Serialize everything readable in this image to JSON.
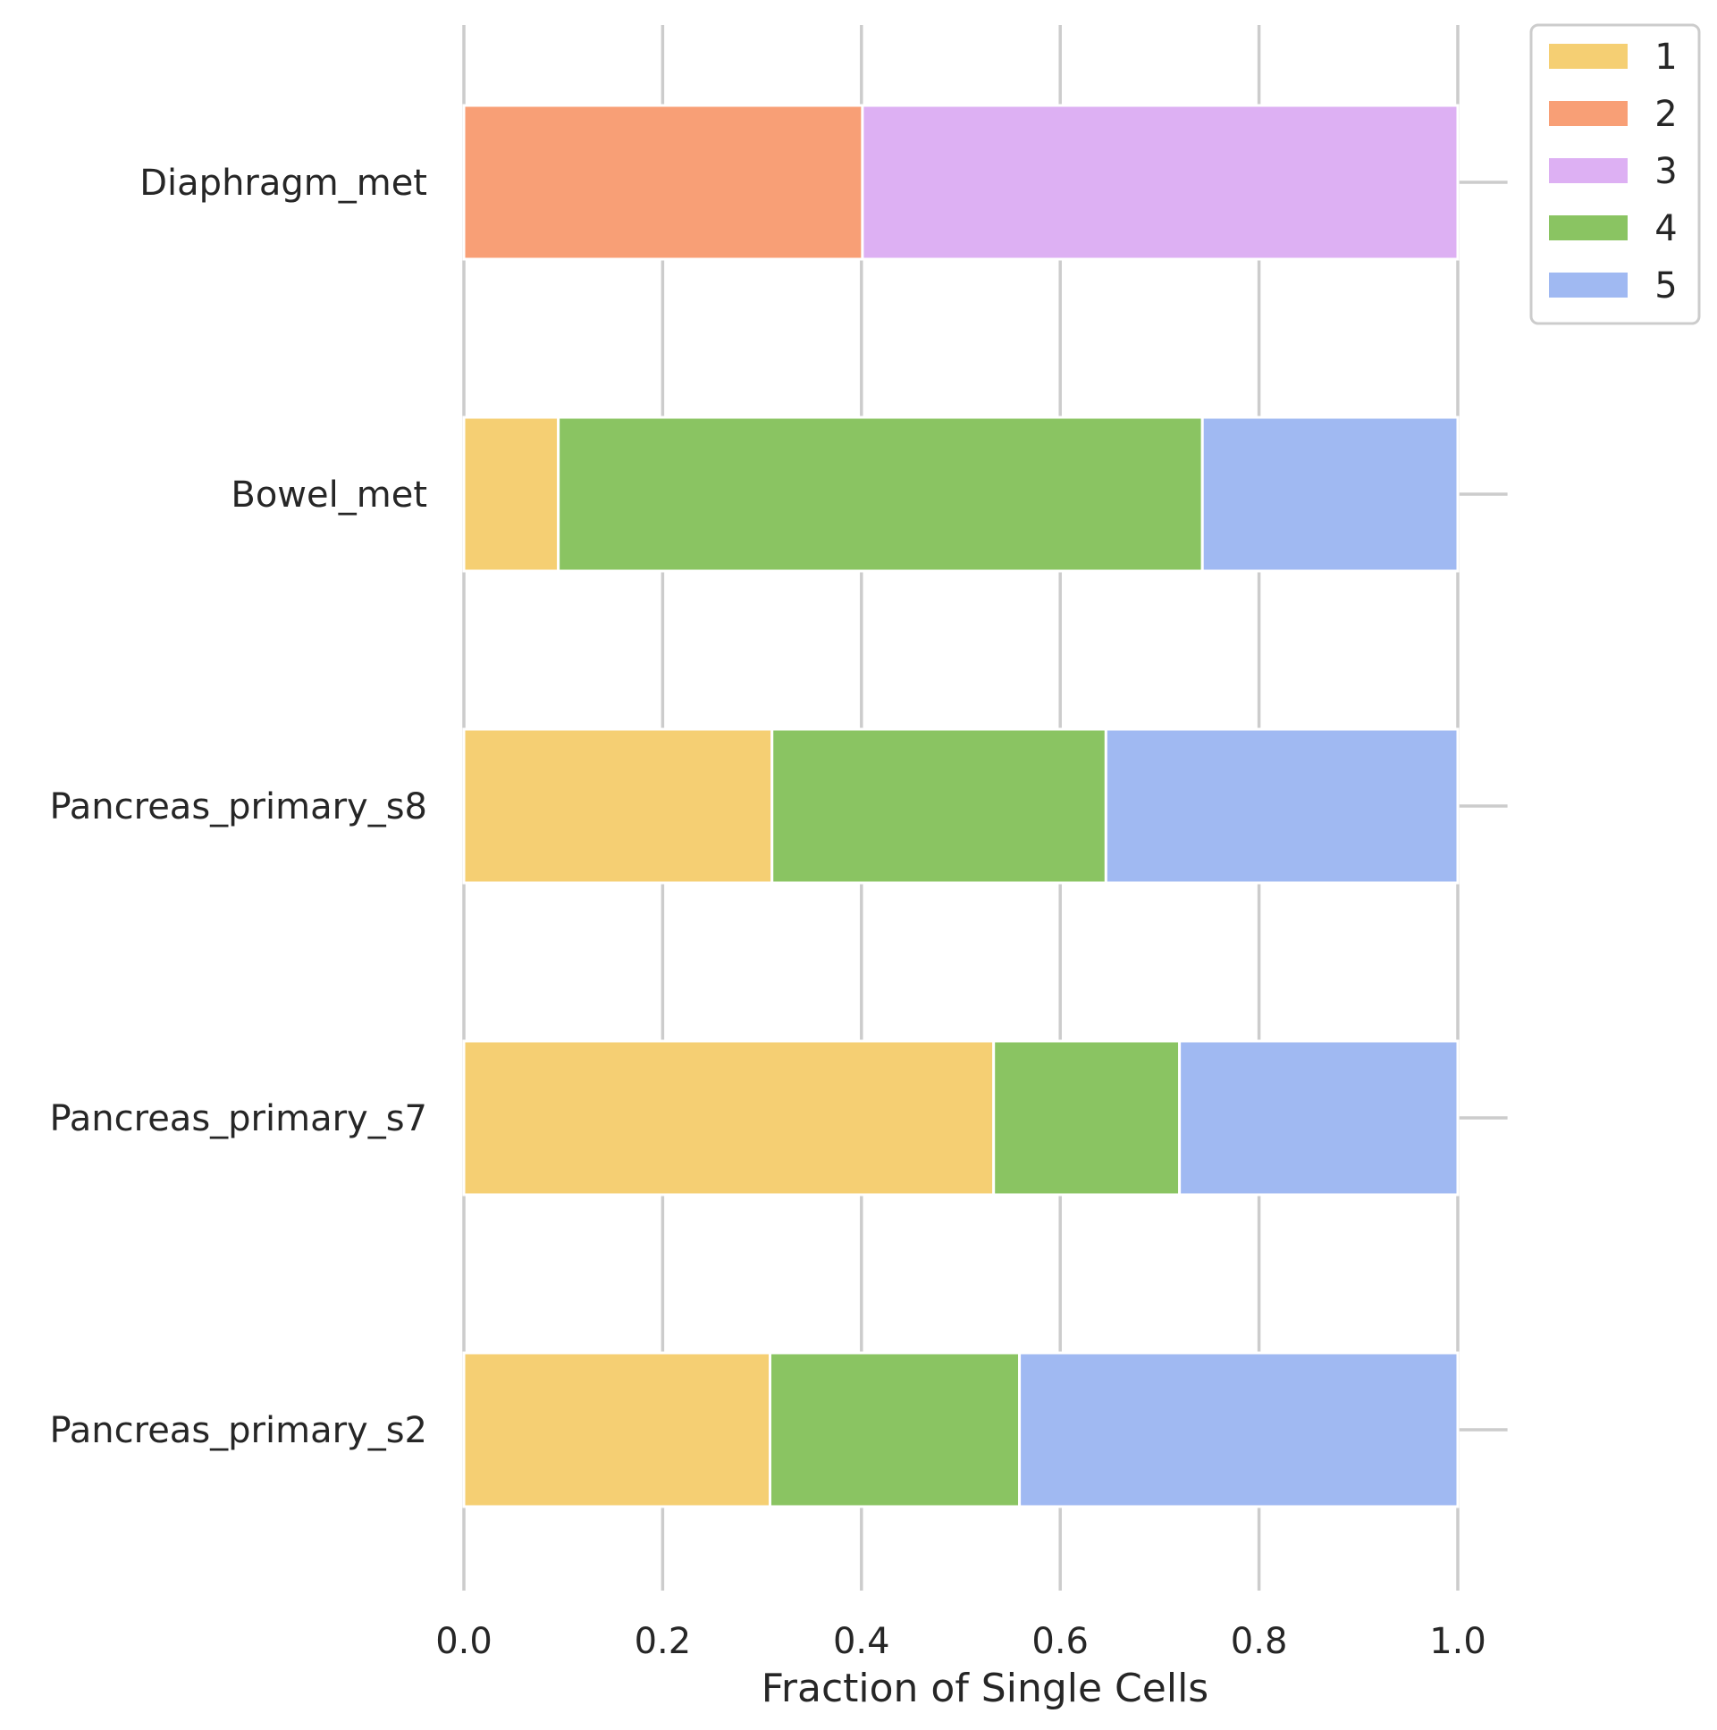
{
  "chart_data": {
    "type": "bar",
    "orientation": "horizontal",
    "stacked": true,
    "xlabel": "Fraction of Single Cells",
    "ylabel": "",
    "xlim": [
      0,
      1.05
    ],
    "xticks": [
      "0.0",
      "0.2",
      "0.4",
      "0.6",
      "0.8",
      "1.0"
    ],
    "grid": true,
    "legend_position": "top-right",
    "categories": [
      "Diaphragm_met",
      "Bowel_met",
      "Pancreas_primary_s8",
      "Pancreas_primary_s7",
      "Pancreas_primary_s2"
    ],
    "series": [
      {
        "name": "1",
        "color": "#f5cf73",
        "values": [
          0.0,
          0.095,
          0.31,
          0.533,
          0.308
        ]
      },
      {
        "name": "2",
        "color": "#f89f76",
        "values": [
          0.401,
          0.0,
          0.0,
          0.0,
          0.0
        ]
      },
      {
        "name": "3",
        "color": "#ddb0f3",
        "values": [
          0.599,
          0.0,
          0.0,
          0.0,
          0.0
        ]
      },
      {
        "name": "4",
        "color": "#8ac462",
        "values": [
          0.0,
          0.648,
          0.336,
          0.187,
          0.251
        ]
      },
      {
        "name": "5",
        "color": "#a0b9f2",
        "values": [
          0.0,
          0.257,
          0.354,
          0.28,
          0.441
        ]
      }
    ]
  }
}
